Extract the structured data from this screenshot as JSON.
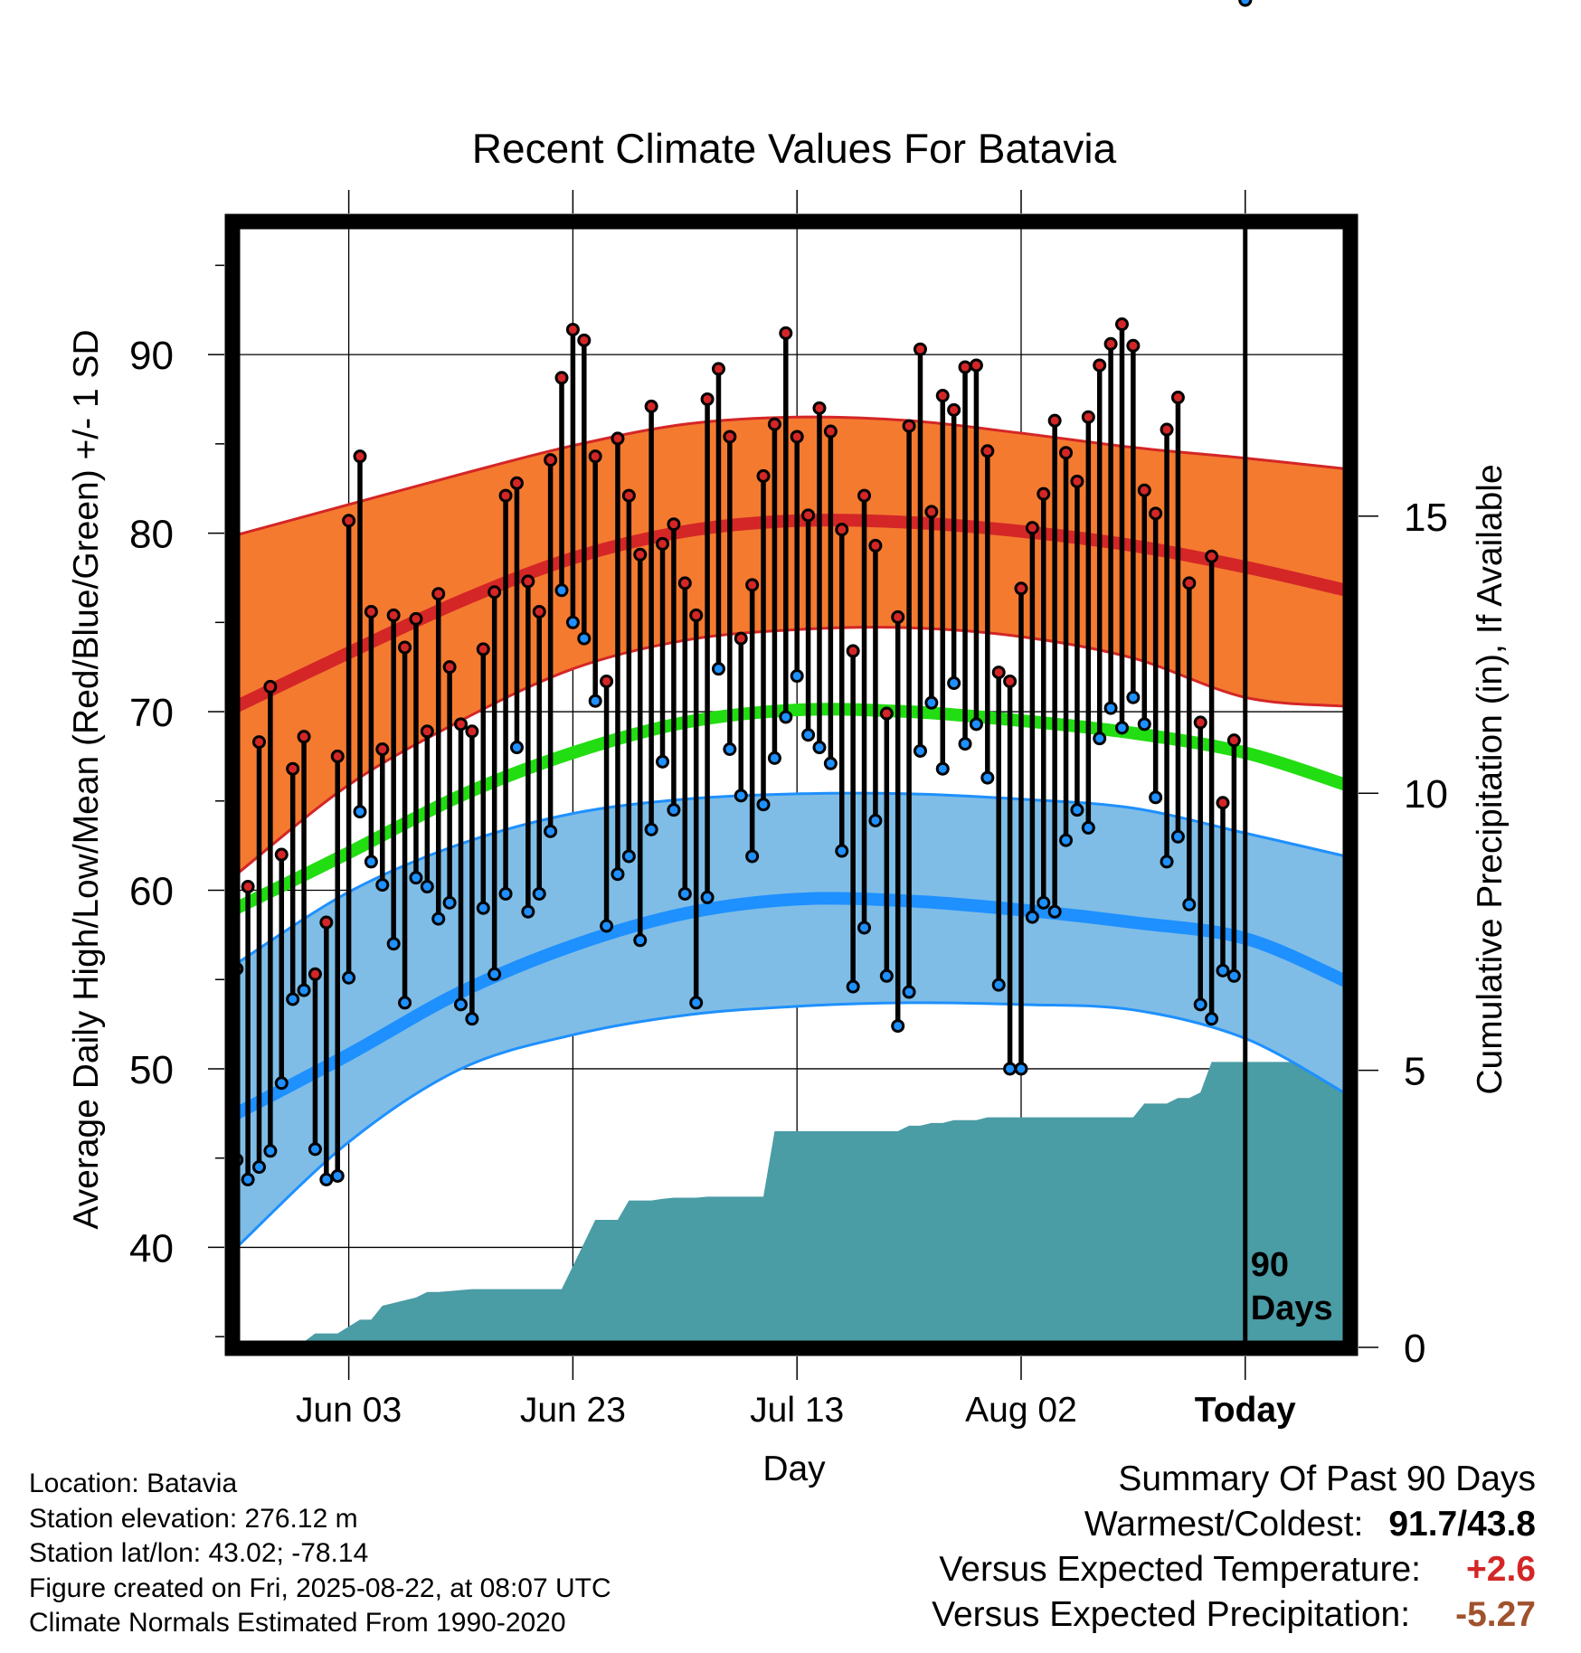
{
  "chart_data": {
    "type": "line",
    "title": "Recent Climate Values For Batavia",
    "xlabel": "Day",
    "ylabel": "Average Daily High/Low/Mean (Red/Blue/Green) +/- 1 SD",
    "y2label": "Cumulative Precipitation (in), If Available",
    "ylim": [
      34.4,
      97.4
    ],
    "y2lim": [
      0,
      20.3
    ],
    "yticks": [
      40,
      50,
      60,
      70,
      80,
      90
    ],
    "y2ticks": [
      0,
      5,
      10,
      15
    ],
    "xtick_labels": [
      "Jun 03",
      "Jun 23",
      "Jul 13",
      "Aug 02",
      "Today"
    ],
    "xtick_days": [
      10,
      30,
      50,
      70,
      90
    ],
    "xlim": [
      -0.3,
      99.3
    ],
    "today_marker_label": "90 Days",
    "grid": true,
    "colors": {
      "high_band": "#f47a30",
      "high_line": "#d42626",
      "low_band": "#7fbde6",
      "low_line": "#1e90ff",
      "mean_line": "#22dd11",
      "precip": "#4a9ca5",
      "high_dot": "#d42626",
      "low_dot": "#1e90ff"
    },
    "normal_days": [
      0,
      10,
      20,
      30,
      40,
      50,
      60,
      70,
      80,
      90,
      99
    ],
    "normal_high": [
      70.3,
      73.3,
      76.2,
      78.6,
      80.1,
      80.7,
      80.6,
      80.1,
      79.3,
      78.1,
      76.8
    ],
    "normal_high_upper": [
      79.9,
      81.6,
      83.3,
      84.9,
      86.1,
      86.5,
      86.3,
      85.6,
      84.8,
      84.2,
      83.6
    ],
    "normal_high_lower": [
      60.9,
      65.9,
      69.5,
      72.4,
      74.0,
      74.6,
      74.7,
      74.2,
      73.0,
      70.8,
      70.3
    ],
    "normal_low": [
      47.5,
      50.8,
      54.3,
      56.9,
      58.7,
      59.5,
      59.4,
      58.9,
      58.2,
      57.3,
      54.9
    ],
    "normal_low_upper": [
      55.9,
      59.9,
      62.6,
      64.3,
      65.1,
      65.4,
      65.4,
      65.1,
      64.6,
      63.2,
      61.9
    ],
    "normal_low_lower": [
      40.0,
      45.9,
      50.0,
      51.9,
      53.0,
      53.5,
      53.7,
      53.6,
      53.3,
      51.7,
      48.6
    ],
    "normal_mean": [
      59.0,
      62.1,
      65.3,
      67.7,
      69.4,
      70.1,
      70.0,
      69.5,
      68.8,
      67.7,
      65.9
    ],
    "days": [
      0,
      1,
      2,
      3,
      4,
      5,
      6,
      7,
      8,
      9,
      10,
      11,
      12,
      13,
      14,
      15,
      16,
      17,
      18,
      19,
      20,
      21,
      22,
      23,
      24,
      25,
      26,
      27,
      28,
      29,
      30,
      31,
      32,
      33,
      34,
      35,
      36,
      37,
      38,
      39,
      40,
      41,
      42,
      43,
      44,
      45,
      46,
      47,
      48,
      49,
      50,
      51,
      52,
      53,
      54,
      55,
      56,
      57,
      58,
      59,
      60,
      61,
      62,
      63,
      64,
      65,
      66,
      67,
      68,
      69,
      70,
      71,
      72,
      73,
      74,
      75,
      76,
      77,
      78,
      79,
      80,
      81,
      82,
      83,
      84,
      85,
      86,
      87,
      88,
      89,
      90
    ],
    "daily_high": [
      55.6,
      60.2,
      68.3,
      71.4,
      62.0,
      66.8,
      68.6,
      55.3,
      58.2,
      67.5,
      80.7,
      84.3,
      75.6,
      67.9,
      75.4,
      73.6,
      75.2,
      68.9,
      76.6,
      72.5,
      69.3,
      68.9,
      73.5,
      76.7,
      82.1,
      82.8,
      77.3,
      75.6,
      84.1,
      88.7,
      91.4,
      90.8,
      84.3,
      71.7,
      85.3,
      82.1,
      78.8,
      87.1,
      79.4,
      80.5,
      77.2,
      75.4,
      87.5,
      89.2,
      85.4,
      74.1,
      77.1,
      83.2,
      86.1,
      91.2,
      85.4,
      81.0,
      87.0,
      85.7,
      80.2,
      73.4,
      82.1,
      79.3,
      69.9,
      75.3,
      86.0,
      90.3,
      81.2,
      87.7,
      86.9,
      89.3,
      89.4,
      84.6,
      72.2,
      71.7,
      76.9,
      80.3,
      82.2,
      86.3,
      84.5,
      82.9,
      86.5,
      89.4,
      90.6,
      91.7,
      90.5,
      82.4,
      81.1,
      85.8,
      87.6,
      77.2,
      69.4,
      78.7,
      64.9,
      68.4
    ],
    "daily_low": [
      44.9,
      43.8,
      44.5,
      45.4,
      49.2,
      53.9,
      54.4,
      45.5,
      43.8,
      44.0,
      55.1,
      64.4,
      61.6,
      60.3,
      57.0,
      53.7,
      60.7,
      60.2,
      58.4,
      59.3,
      53.6,
      52.8,
      59.0,
      55.3,
      59.8,
      68.0,
      58.8,
      59.8,
      63.3,
      76.8,
      75.0,
      74.1,
      70.6,
      58.0,
      60.9,
      61.9,
      57.2,
      63.4,
      67.2,
      64.5,
      59.8,
      53.7,
      59.6,
      72.4,
      67.9,
      65.3,
      61.9,
      64.8,
      67.4,
      69.7,
      72.0,
      68.7,
      68.0,
      67.1,
      62.2,
      54.6,
      57.9,
      63.9,
      55.2,
      52.4,
      54.3,
      67.8,
      70.5,
      66.8,
      71.6,
      68.2,
      69.3,
      66.3,
      54.7,
      50.0,
      50.0,
      58.5,
      59.3,
      58.8,
      62.8,
      64.5,
      63.5,
      68.5,
      70.2,
      69.1,
      70.8,
      69.3,
      65.2,
      61.6,
      63.0,
      59.2,
      53.6,
      52.8,
      55.5,
      55.2
    ],
    "precip_days": [
      0,
      5,
      6,
      7,
      9,
      11,
      12,
      13,
      16,
      17,
      18,
      21,
      22,
      23,
      26,
      27,
      29,
      32,
      33,
      34,
      35,
      36,
      37,
      38,
      39,
      40,
      41,
      42,
      47,
      48,
      49,
      50,
      51,
      52,
      53,
      54,
      55,
      56,
      57,
      58,
      59,
      60,
      61,
      62,
      63,
      64,
      65,
      66,
      67,
      68,
      69,
      70,
      71,
      72,
      73,
      74,
      75,
      76,
      77,
      78,
      79,
      80,
      81,
      82,
      83,
      84,
      85,
      86,
      87,
      88,
      89,
      90,
      91,
      92,
      93,
      94,
      95,
      96,
      97,
      98,
      99
    ],
    "cumulative_precip": [
      0.0,
      0.0,
      0.1,
      0.25,
      0.25,
      0.5,
      0.5,
      0.75,
      0.9,
      1.0,
      1.0,
      1.05,
      1.05,
      1.05,
      1.05,
      1.05,
      1.05,
      2.3,
      2.3,
      2.3,
      2.65,
      2.65,
      2.65,
      2.68,
      2.7,
      2.7,
      2.7,
      2.72,
      2.72,
      3.9,
      3.9,
      3.9,
      3.9,
      3.9,
      3.9,
      3.9,
      3.9,
      3.9,
      3.9,
      3.9,
      3.9,
      4.0,
      4.0,
      4.05,
      4.05,
      4.1,
      4.1,
      4.1,
      4.15,
      4.15,
      4.15,
      4.15,
      4.15,
      4.15,
      4.15,
      4.15,
      4.15,
      4.15,
      4.15,
      4.15,
      4.15,
      4.15,
      4.4,
      4.4,
      4.4,
      4.5,
      4.5,
      4.6,
      5.15,
      5.15,
      5.15,
      5.15,
      5.15,
      5.15,
      5.15,
      5.15,
      5.15,
      5.15,
      5.15,
      5.15,
      5.15
    ]
  },
  "footer": {
    "location": "Location: Batavia",
    "elevation": "Station elevation: 276.12 m",
    "latlon": "Station lat/lon: 43.02; -78.14",
    "created": "Figure created on Fri, 2025-08-22, at 08:07 UTC",
    "normals": "Climate Normals Estimated From 1990-2020"
  },
  "summary": {
    "title": "Summary Of Past 90 Days",
    "warmest_coldest_label": "Warmest/Coldest:",
    "warmest": "91.7",
    "slash": "/",
    "coldest": "43.8",
    "vs_temp_label": "Versus Expected Temperature:",
    "vs_temp_value": "+2.6",
    "vs_temp_color": "#d42626",
    "vs_precip_label": "Versus Expected Precipitation:",
    "vs_precip_value": "-5.27",
    "vs_precip_color": "#a0522d"
  }
}
